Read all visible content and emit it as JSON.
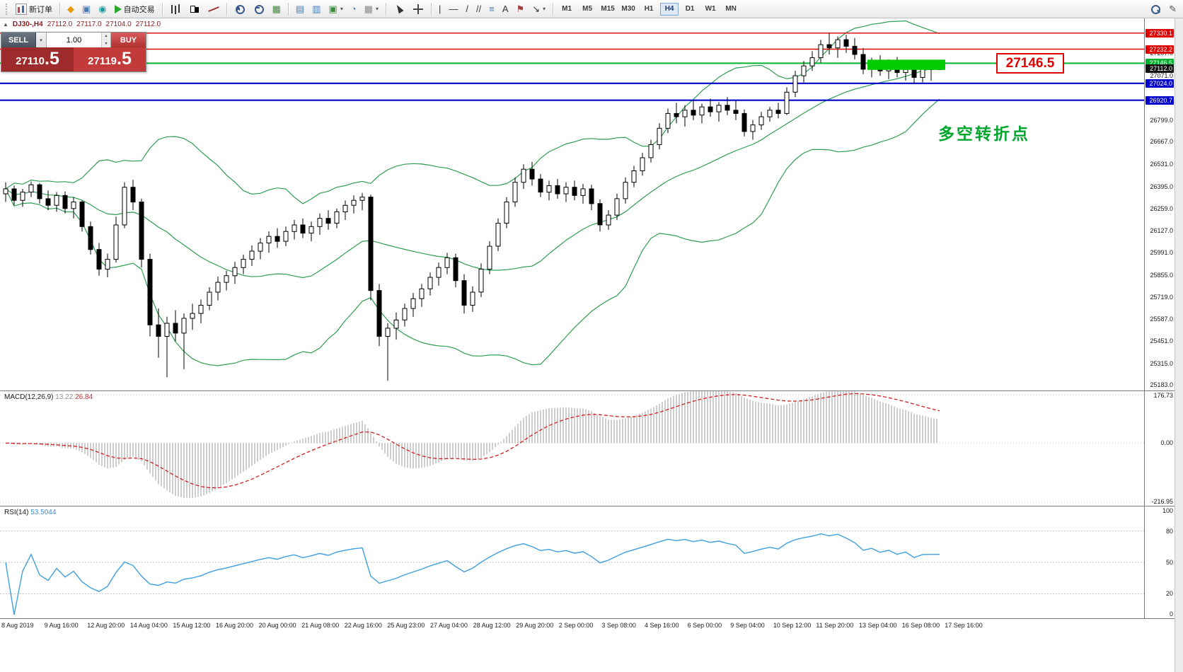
{
  "glyphs": {
    "up": "▴",
    "down": "▾",
    "caret": "▾",
    "collapse": "▲"
  },
  "toolbar": {
    "active_timeframe": "H4",
    "items": [
      {
        "kind": "grip"
      },
      {
        "kind": "button",
        "name": "new-order-button",
        "icon": "neworder",
        "label": "新订单"
      },
      {
        "kind": "sep"
      },
      {
        "kind": "button",
        "name": "metaquotes-button",
        "glyph": "◆",
        "color": "#e8960a"
      },
      {
        "kind": "button",
        "name": "metaeditor-button",
        "glyph": "▣",
        "color": "#4a7ab5"
      },
      {
        "kind": "button",
        "name": "terminal-button",
        "glyph": "◉",
        "color": "#1a9a9a"
      },
      {
        "kind": "button",
        "name": "autotrading-button",
        "icon": "play",
        "label": "自动交易"
      },
      {
        "kind": "sep"
      },
      {
        "kind": "button",
        "name": "bar-chart-button",
        "icon": "bars"
      },
      {
        "kind": "button",
        "name": "candle-chart-button",
        "icon": "candles"
      },
      {
        "kind": "button",
        "name": "line-chart-button",
        "icon": "linechart"
      },
      {
        "kind": "sep"
      },
      {
        "kind": "button",
        "name": "zoom-in-button",
        "icon": "zoomin"
      },
      {
        "kind": "button",
        "name": "zoom-out-button",
        "icon": "zoomout"
      },
      {
        "kind": "button",
        "name": "indicators-button",
        "glyph": "▦",
        "color": "#3a8a3a"
      },
      {
        "kind": "sep"
      },
      {
        "kind": "button",
        "name": "tile-horizontal-button",
        "glyph": "▤",
        "color": "#4a7ab5"
      },
      {
        "kind": "button",
        "name": "tile-vertical-button",
        "glyph": "▥",
        "color": "#4a7ab5"
      },
      {
        "kind": "button",
        "name": "new-chart-button",
        "glyph": "▣",
        "color": "#3a8a3a",
        "caret": true
      },
      {
        "kind": "button",
        "name": "chart-shift-button",
        "glyph": "◔",
        "color": "#4a7ab5"
      },
      {
        "kind": "button",
        "name": "indicator-list-button",
        "glyph": "▦",
        "color": "#8a8a8a",
        "caret": true
      },
      {
        "kind": "sep"
      },
      {
        "kind": "button",
        "name": "cursor-button",
        "icon": "cursor"
      },
      {
        "kind": "button",
        "name": "crosshair-button",
        "icon": "crosshair"
      },
      {
        "kind": "sep"
      },
      {
        "kind": "button",
        "name": "vertical-line-button",
        "glyph": "|",
        "color": "#333333"
      },
      {
        "kind": "button",
        "name": "horizontal-line-button",
        "glyph": "—",
        "color": "#333333"
      },
      {
        "kind": "button",
        "name": "trendline-button",
        "glyph": "/",
        "color": "#333333"
      },
      {
        "kind": "button",
        "name": "channel-button",
        "glyph": "//",
        "color": "#333333"
      },
      {
        "kind": "button",
        "name": "fibonacci-button",
        "glyph": "≡",
        "color": "#4a7ab5"
      },
      {
        "kind": "button",
        "name": "text-button",
        "glyph": "A",
        "color": "#333333"
      },
      {
        "kind": "button",
        "name": "label-button",
        "glyph": "⚑",
        "color": "#a04040"
      },
      {
        "kind": "button",
        "name": "arrows-button",
        "glyph": "↘",
        "color": "#333333",
        "caret": true
      },
      {
        "kind": "sep"
      },
      {
        "kind": "tf",
        "label": "M1"
      },
      {
        "kind": "tf",
        "label": "M5"
      },
      {
        "kind": "tf",
        "label": "M15"
      },
      {
        "kind": "tf",
        "label": "M30"
      },
      {
        "kind": "tf",
        "label": "H1"
      },
      {
        "kind": "tf",
        "label": "H4"
      },
      {
        "kind": "tf",
        "label": "D1"
      },
      {
        "kind": "tf",
        "label": "W1"
      },
      {
        "kind": "tf",
        "label": "MN"
      },
      {
        "kind": "spacer"
      },
      {
        "kind": "button",
        "name": "search-button",
        "icon": "mag"
      },
      {
        "kind": "button",
        "name": "edit-button",
        "glyph": "✎",
        "color": "#555555"
      }
    ]
  },
  "trade_panel": {
    "sell_label": "SELL",
    "buy_label": "BUY",
    "volume": "1.00",
    "sell_price": "27110",
    "sell_fraction": ".5",
    "buy_price": "27119",
    "buy_fraction": ".5"
  },
  "chart": {
    "header": {
      "symbol": "DJ30-,H4",
      "open": "27112.0",
      "high": "27117.0",
      "low": "27104.0",
      "close": "27112.0"
    },
    "price_range": {
      "max": 27420,
      "min": 25150
    },
    "bb_color": "#2f9e4f",
    "price_axis_labels": [
      "27207.0",
      "27071.0",
      "26799.0",
      "26667.0",
      "26531.0",
      "26395.0",
      "26259.0",
      "26127.0",
      "25991.0",
      "25855.0",
      "25719.0",
      "25587.0",
      "25451.0",
      "25315.0",
      "25183.0"
    ],
    "levels": [
      {
        "label": "27330.1",
        "value": 27330.1,
        "color": "#e00000",
        "width": 1.4
      },
      {
        "label": "27232.2",
        "value": 27232.2,
        "color": "#e00000",
        "width": 1.4
      },
      {
        "label": "27146.5",
        "value": 27146.5,
        "color": "#00b22d",
        "width": 2
      },
      {
        "label": "27024.0",
        "value": 27024.0,
        "color": "#0000cd",
        "width": 2.2
      },
      {
        "label": "26920.7",
        "value": 26920.7,
        "color": "#0000cd",
        "width": 2.2
      }
    ],
    "current_price": {
      "label": "27112.0",
      "value": 27112.0,
      "color": "#111111"
    },
    "big_price_label": "27146.5",
    "annotation": "多空转折点",
    "highlight_zone": {
      "bar_start": 102,
      "bar_end": 110,
      "price_top": 27168,
      "price_bottom": 27106,
      "color": "#00cc00"
    },
    "candles": [
      [
        26350,
        26420,
        26300,
        26380
      ],
      [
        26380,
        26400,
        26280,
        26310
      ],
      [
        26310,
        26380,
        26270,
        26360
      ],
      [
        26360,
        26425,
        26330,
        26405
      ],
      [
        26405,
        26415,
        26290,
        26320
      ],
      [
        26320,
        26370,
        26250,
        26280
      ],
      [
        26280,
        26360,
        26240,
        26340
      ],
      [
        26340,
        26365,
        26230,
        26260
      ],
      [
        26260,
        26330,
        26200,
        26300
      ],
      [
        26300,
        26310,
        26120,
        26150
      ],
      [
        26150,
        26180,
        25980,
        26010
      ],
      [
        26010,
        26050,
        25850,
        25890
      ],
      [
        25890,
        25985,
        25840,
        25950
      ],
      [
        25950,
        26210,
        25930,
        26160
      ],
      [
        26160,
        26420,
        26140,
        26390
      ],
      [
        26390,
        26435,
        26250,
        26300
      ],
      [
        26300,
        26320,
        25900,
        25950
      ],
      [
        25950,
        25985,
        25480,
        25550
      ],
      [
        25550,
        25650,
        25350,
        25480
      ],
      [
        25480,
        25600,
        25230,
        25560
      ],
      [
        25560,
        25640,
        25450,
        25500
      ],
      [
        25500,
        25620,
        25280,
        25590
      ],
      [
        25590,
        25680,
        25520,
        25620
      ],
      [
        25620,
        25705,
        25560,
        25670
      ],
      [
        25670,
        25780,
        25640,
        25750
      ],
      [
        25750,
        25845,
        25700,
        25810
      ],
      [
        25810,
        25880,
        25760,
        25850
      ],
      [
        25850,
        25935,
        25800,
        25900
      ],
      [
        25900,
        25980,
        25860,
        25950
      ],
      [
        25950,
        26035,
        25910,
        26000
      ],
      [
        26000,
        26080,
        25950,
        26050
      ],
      [
        26050,
        26120,
        25990,
        26090
      ],
      [
        26090,
        26140,
        26020,
        26060
      ],
      [
        26060,
        26150,
        26030,
        26120
      ],
      [
        26120,
        26190,
        26070,
        26160
      ],
      [
        26160,
        26200,
        26080,
        26110
      ],
      [
        26110,
        26180,
        26060,
        26150
      ],
      [
        26150,
        26230,
        26100,
        26200
      ],
      [
        26200,
        26250,
        26130,
        26170
      ],
      [
        26170,
        26260,
        26140,
        26240
      ],
      [
        26240,
        26310,
        26190,
        26280
      ],
      [
        26280,
        26340,
        26230,
        26310
      ],
      [
        26310,
        26355,
        26250,
        26330
      ],
      [
        26330,
        26345,
        25700,
        25760
      ],
      [
        25760,
        25800,
        25420,
        25480
      ],
      [
        25480,
        25560,
        25210,
        25530
      ],
      [
        25530,
        25625,
        25460,
        25580
      ],
      [
        25580,
        25680,
        25540,
        25650
      ],
      [
        25650,
        25745,
        25600,
        25710
      ],
      [
        25710,
        25800,
        25660,
        25770
      ],
      [
        25770,
        25870,
        25730,
        25840
      ],
      [
        25840,
        25930,
        25790,
        25900
      ],
      [
        25900,
        25990,
        25860,
        25960
      ],
      [
        25960,
        25985,
        25780,
        25820
      ],
      [
        25820,
        25860,
        25620,
        25670
      ],
      [
        25670,
        25785,
        25630,
        25750
      ],
      [
        25750,
        25925,
        25720,
        25890
      ],
      [
        25890,
        26060,
        25860,
        26030
      ],
      [
        26030,
        26200,
        26000,
        26170
      ],
      [
        26170,
        26330,
        26140,
        26300
      ],
      [
        26300,
        26450,
        26270,
        26420
      ],
      [
        26420,
        26530,
        26380,
        26500
      ],
      [
        26500,
        26545,
        26400,
        26440
      ],
      [
        26440,
        26470,
        26330,
        26360
      ],
      [
        26360,
        26430,
        26310,
        26400
      ],
      [
        26400,
        26440,
        26320,
        26350
      ],
      [
        26350,
        26420,
        26300,
        26390
      ],
      [
        26390,
        26430,
        26310,
        26340
      ],
      [
        26340,
        26410,
        26290,
        26380
      ],
      [
        26380,
        26405,
        26250,
        26290
      ],
      [
        26290,
        26315,
        26120,
        26160
      ],
      [
        26160,
        26250,
        26130,
        26220
      ],
      [
        26220,
        26350,
        26190,
        26320
      ],
      [
        26320,
        26450,
        26290,
        26420
      ],
      [
        26420,
        26520,
        26390,
        26490
      ],
      [
        26490,
        26600,
        26460,
        26570
      ],
      [
        26570,
        26680,
        26540,
        26650
      ],
      [
        26650,
        26780,
        26620,
        26750
      ],
      [
        26750,
        26870,
        26720,
        26840
      ],
      [
        26840,
        26905,
        26780,
        26820
      ],
      [
        26820,
        26890,
        26760,
        26860
      ],
      [
        26860,
        26920,
        26800,
        26830
      ],
      [
        26830,
        26900,
        26780,
        26880
      ],
      [
        26880,
        26930,
        26820,
        26850
      ],
      [
        26850,
        26910,
        26790,
        26890
      ],
      [
        26890,
        26940,
        26830,
        26860
      ],
      [
        26860,
        26920,
        26800,
        26840
      ],
      [
        26840,
        26865,
        26700,
        26730
      ],
      [
        26730,
        26800,
        26680,
        26770
      ],
      [
        26770,
        26850,
        26740,
        26820
      ],
      [
        26820,
        26880,
        26790,
        26860
      ],
      [
        26860,
        26905,
        26810,
        26840
      ],
      [
        26840,
        27000,
        26830,
        26970
      ],
      [
        26970,
        27100,
        26940,
        27070
      ],
      [
        27070,
        27160,
        27030,
        27130
      ],
      [
        27130,
        27220,
        27100,
        27180
      ],
      [
        27180,
        27290,
        27150,
        27260
      ],
      [
        27260,
        27330,
        27200,
        27240
      ],
      [
        27240,
        27310,
        27180,
        27290
      ],
      [
        27290,
        27320,
        27210,
        27250
      ],
      [
        27250,
        27300,
        27170,
        27200
      ],
      [
        27200,
        27240,
        27080,
        27110
      ],
      [
        27110,
        27180,
        27060,
        27150
      ],
      [
        27150,
        27195,
        27070,
        27100
      ],
      [
        27100,
        27170,
        27050,
        27140
      ],
      [
        27140,
        27185,
        27060,
        27090
      ],
      [
        27090,
        27160,
        27040,
        27130
      ],
      [
        27130,
        27155,
        27020,
        27060
      ],
      [
        27060,
        27140,
        27030,
        27110
      ],
      [
        27110,
        27150,
        27040,
        27112
      ],
      [
        27112,
        27117,
        27104,
        27112
      ]
    ]
  },
  "macd": {
    "name": "MACD(12,26,9)",
    "value_main": "13.22",
    "value_signal": "26.84",
    "axis_labels": [
      "176.73",
      "0.00",
      "-216.95"
    ],
    "range": {
      "max": 190,
      "min": -230
    },
    "histogram_color": "#b9b9b9",
    "signal_color": "#d02020"
  },
  "rsi": {
    "name": "RSI(14)",
    "value": "53.5044",
    "axis_labels": [
      "100",
      "80",
      "50",
      "20",
      "0"
    ],
    "levels": [
      80,
      50,
      20
    ],
    "period": 14,
    "line_color": "#3f9fdf"
  },
  "time_axis": {
    "labels": [
      "8 Aug 2019",
      "9 Aug 16:00",
      "12 Aug 20:00",
      "14 Aug 04:00",
      "15 Aug 12:00",
      "16 Aug 20:00",
      "20 Aug 00:00",
      "21 Aug 08:00",
      "22 Aug 16:00",
      "25 Aug 23:00",
      "27 Aug 04:00",
      "28 Aug 12:00",
      "29 Aug 20:00",
      "2 Sep 00:00",
      "3 Sep 08:00",
      "4 Sep 16:00",
      "6 Sep 00:00",
      "9 Sep 04:00",
      "10 Sep 12:00",
      "11 Sep 20:00",
      "13 Sep 04:00",
      "16 Sep 08:00",
      "17 Sep 16:00"
    ]
  }
}
